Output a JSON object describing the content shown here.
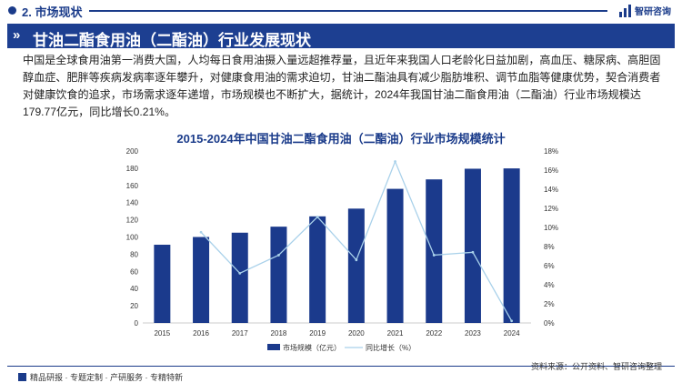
{
  "header": {
    "section_title": "2. 市场现状",
    "logo_text": "智研咨询",
    "banner_title": "甘油二酯食用油（二酯油）行业发展现状"
  },
  "body_text": "中国是全球食用油第一消费大国，人均每日食用油摄入量远超推荐量，且近年来我国人口老龄化日益加剧，高血压、糖尿病、高胆固醇血症、肥胖等疾病发病率逐年攀升，对健康食用油的需求迫切，甘油二酯油具有减少脂肪堆积、调节血脂等健康优势，契合消费者对健康饮食的追求，市场需求逐年递增，市场规模也不断扩大，据统计，2024年我国甘油二酯食用油（二酯油）行业市场规模达179.77亿元，同比增长0.21%。",
  "footer": {
    "left": "精品研报 · 专题定制 · 产研服务 · 专精特新",
    "source": "资料来源：公开资料、智研咨询整理"
  },
  "colors": {
    "bar": "#1b3a8c",
    "line": "#a9d1ea",
    "title": "#1a3b8a"
  },
  "chart_data": {
    "type": "bar+line",
    "title": "2015-2024年中国甘油二酯食用油（二酯油）行业市场规模统计",
    "categories": [
      "2015",
      "2016",
      "2017",
      "2018",
      "2019",
      "2020",
      "2021",
      "2022",
      "2023",
      "2024"
    ],
    "series": [
      {
        "name": "市场规模（亿元）",
        "type": "bar",
        "axis": "left",
        "values": [
          91,
          100,
          105,
          112,
          124,
          133,
          156,
          167,
          179.4,
          179.77
        ]
      },
      {
        "name": "同比增长（%）",
        "type": "line",
        "axis": "right",
        "values": [
          null,
          9.5,
          5.2,
          7.1,
          11.1,
          6.6,
          16.9,
          7.1,
          7.4,
          0.21
        ]
      }
    ],
    "y_left": {
      "min": 0,
      "max": 200,
      "ticks": [
        "0",
        "20",
        "40",
        "60",
        "80",
        "100",
        "120",
        "140",
        "160",
        "180",
        "200"
      ]
    },
    "y_right": {
      "min": 0,
      "max": 18,
      "ticks": [
        "0%",
        "2%",
        "4%",
        "6%",
        "8%",
        "10%",
        "12%",
        "14%",
        "16%",
        "18%"
      ]
    },
    "legend_position": "bottom-center",
    "grid": false
  }
}
